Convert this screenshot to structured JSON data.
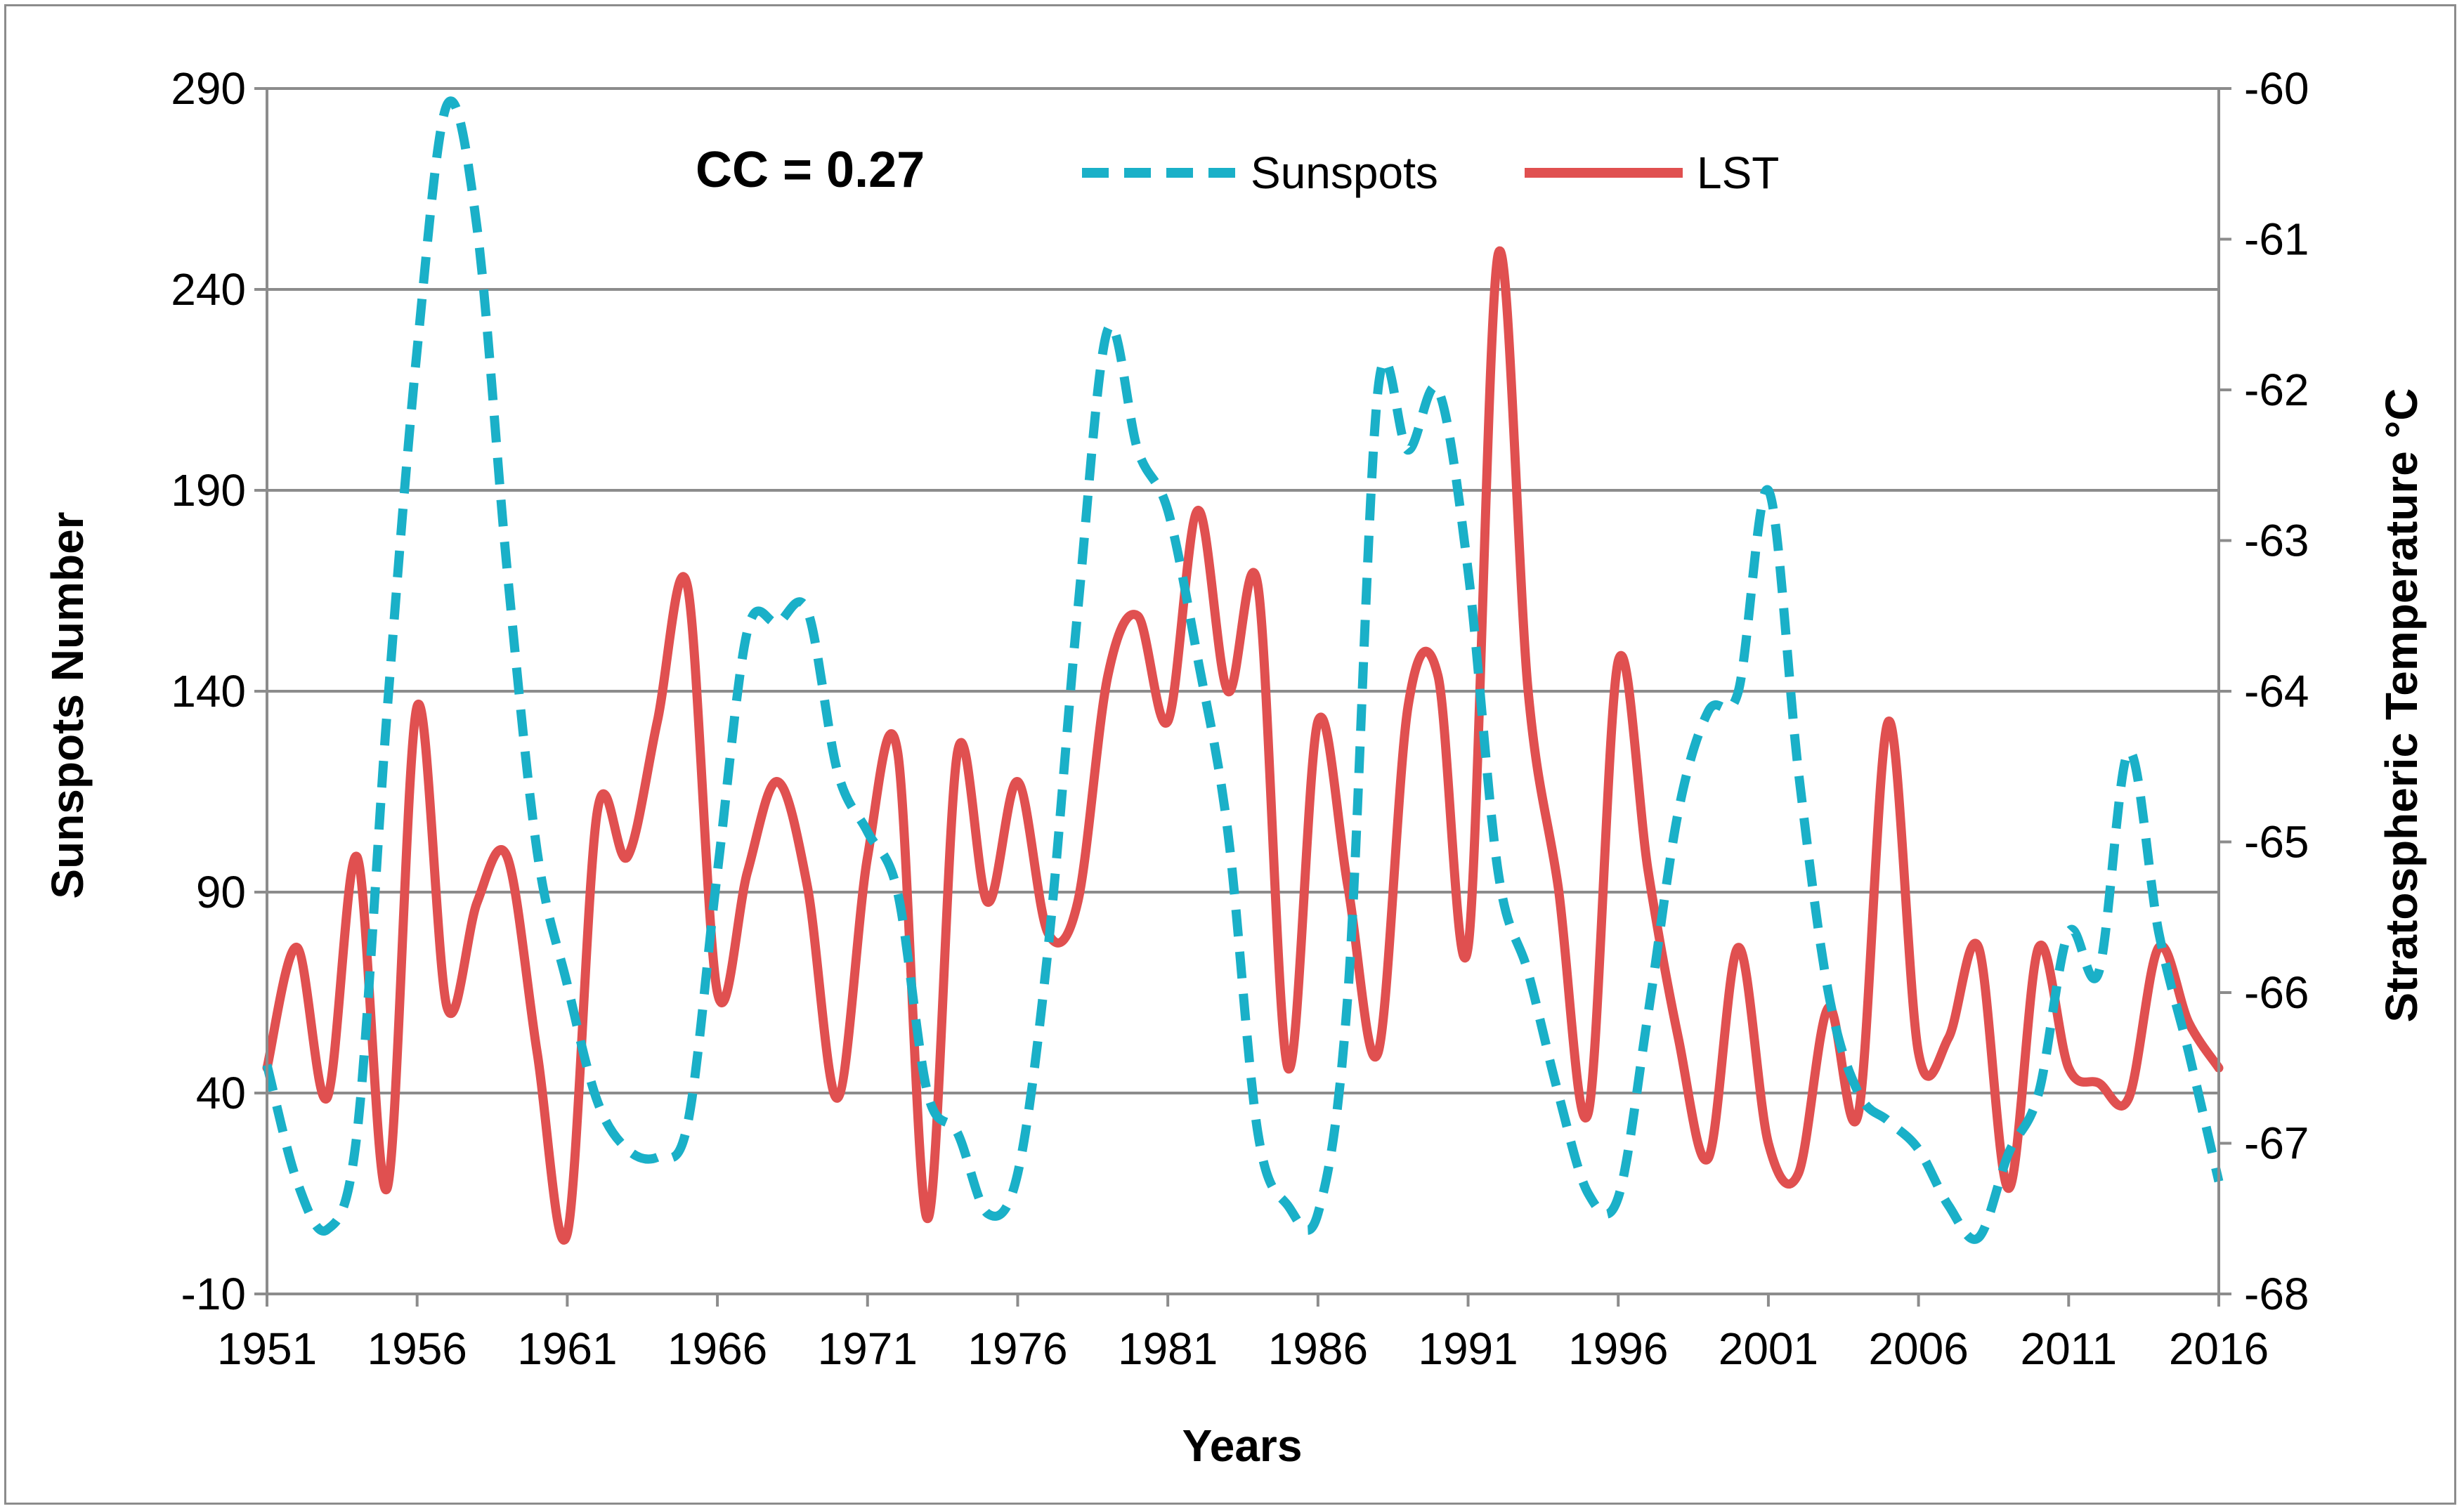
{
  "chart_data": {
    "type": "line",
    "xlabel": "Years",
    "ylabel_left": "Sunspots Number",
    "ylabel_right": "Stratospheric Temperature °C",
    "annotation": "CC = 0.27",
    "xlim": [
      1951,
      2016
    ],
    "ylim_left": [
      -10,
      290
    ],
    "ylim_right": [
      -68,
      -60
    ],
    "x_ticks": [
      1951,
      1956,
      1961,
      1966,
      1971,
      1976,
      1981,
      1986,
      1991,
      1996,
      2001,
      2006,
      2011,
      2016
    ],
    "y_ticks_left": [
      -10,
      40,
      90,
      140,
      190,
      240,
      290
    ],
    "y_ticks_right": [
      -68,
      -67,
      -66,
      -65,
      -64,
      -63,
      -62,
      -61,
      -60
    ],
    "grid": true,
    "legend_position": "top-center",
    "colors": {
      "sunspots": "#1ab0c8",
      "lst": "#e05050",
      "grid": "#8c8c8c"
    },
    "series": [
      {
        "name": "Sunspots",
        "axis": "left",
        "style": "dashed",
        "x": [
          1951,
          1952,
          1953,
          1954,
          1955,
          1956,
          1957,
          1958,
          1959,
          1960,
          1961,
          1962,
          1963,
          1964,
          1965,
          1966,
          1967,
          1968,
          1969,
          1970,
          1971,
          1972,
          1973,
          1974,
          1975,
          1976,
          1977,
          1978,
          1979,
          1980,
          1981,
          1982,
          1983,
          1984,
          1985,
          1986,
          1987,
          1988,
          1989,
          1990,
          1991,
          1992,
          1993,
          1994,
          1995,
          1996,
          1997,
          1998,
          1999,
          2000,
          2001,
          2002,
          2003,
          2004,
          2005,
          2006,
          2007,
          2008,
          2009,
          2010,
          2011,
          2012,
          2013,
          2014,
          2015,
          2016
        ],
        "values": [
          47,
          18,
          6,
          30,
          135,
          225,
          286,
          255,
          170,
          100,
          67,
          38,
          26,
          24,
          32,
          95,
          155,
          157,
          160,
          120,
          105,
          90,
          40,
          30,
          10,
          20,
          75,
          160,
          230,
          200,
          185,
          148,
          105,
          30,
          12,
          10,
          65,
          215,
          200,
          215,
          170,
          95,
          70,
          40,
          15,
          14,
          60,
          110,
          135,
          140,
          190,
          120,
          65,
          40,
          33,
          26,
          12,
          4,
          25,
          40,
          80,
          70,
          125,
          80,
          50,
          18
        ]
      },
      {
        "name": "LST",
        "axis": "right",
        "style": "solid",
        "x": [
          1951,
          1952,
          1953,
          1954,
          1955,
          1956,
          1957,
          1958,
          1959,
          1960,
          1961,
          1962,
          1963,
          1964,
          1965,
          1966,
          1967,
          1968,
          1969,
          1970,
          1971,
          1972,
          1973,
          1974,
          1975,
          1976,
          1977,
          1978,
          1979,
          1980,
          1981,
          1982,
          1983,
          1984,
          1985,
          1986,
          1987,
          1988,
          1989,
          1990,
          1991,
          1992,
          1993,
          1994,
          1995,
          1996,
          1997,
          1998,
          1999,
          2000,
          2001,
          2002,
          2003,
          2004,
          2005,
          2006,
          2007,
          2008,
          2009,
          2010,
          2011,
          2012,
          2013,
          2014,
          2015,
          2016
        ],
        "values": [
          -66.5,
          -65.7,
          -66.7,
          -65.1,
          -67.3,
          -64.1,
          -66.1,
          -65.4,
          -65.1,
          -66.4,
          -67.6,
          -64.8,
          -65.1,
          -64.2,
          -63.3,
          -66.0,
          -65.2,
          -64.6,
          -65.3,
          -66.7,
          -65.1,
          -64.4,
          -67.5,
          -64.4,
          -65.4,
          -64.6,
          -65.6,
          -65.4,
          -63.9,
          -63.5,
          -64.2,
          -62.8,
          -64.0,
          -63.3,
          -66.5,
          -64.2,
          -65.3,
          -66.4,
          -64.1,
          -63.9,
          -65.7,
          -61.1,
          -64.0,
          -65.3,
          -66.8,
          -63.8,
          -65.2,
          -66.3,
          -67.1,
          -65.7,
          -67.0,
          -67.2,
          -66.1,
          -66.8,
          -64.2,
          -66.4,
          -66.3,
          -65.7,
          -67.3,
          -65.7,
          -66.5,
          -66.6,
          -66.7,
          -65.7,
          -66.2,
          -66.5
        ]
      }
    ]
  }
}
